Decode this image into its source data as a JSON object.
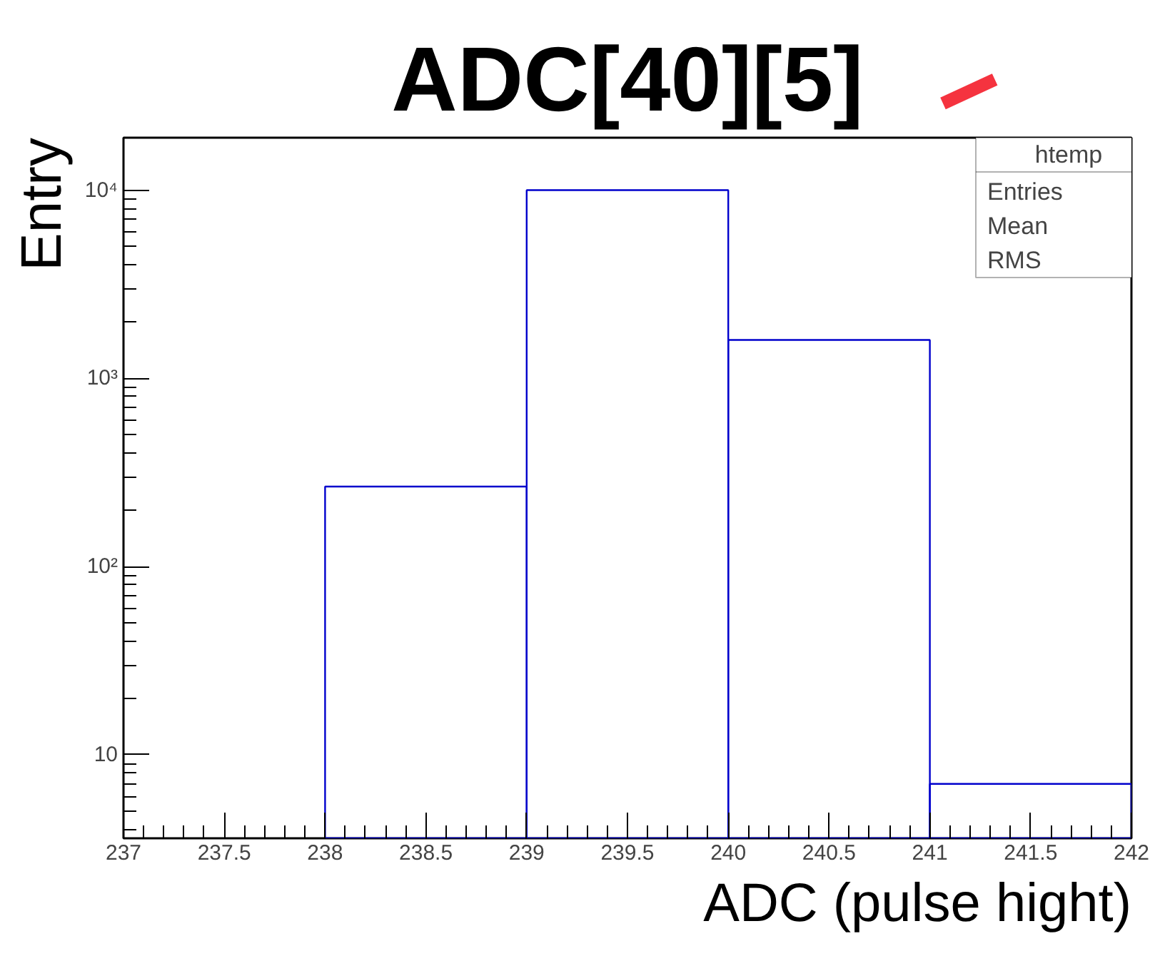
{
  "chart_data": {
    "type": "histogram",
    "title": "ADC[40][5]",
    "xlabel": "ADC (pulse hight)",
    "ylabel": "Entry",
    "bins": [
      237,
      238,
      239,
      240,
      241,
      242
    ],
    "values": [
      null,
      266,
      10000,
      1600,
      7
    ],
    "color": "#0000cc",
    "log": "y",
    "xlim": [
      237,
      242
    ],
    "ylim": [
      3.6,
      19000
    ],
    "xticks": [
      237,
      237.5,
      238,
      238.5,
      239,
      239.5,
      240,
      240.5,
      241,
      241.5,
      242
    ],
    "yticks": [
      10,
      {
        "value": 100,
        "label": "10²"
      },
      {
        "value": 1000,
        "label": "10³"
      },
      {
        "value": 10000,
        "label": "10⁴"
      }
    ],
    "annotations": [
      "htemp",
      "Entries",
      "Mean",
      "RMS"
    ],
    "grid": false
  }
}
